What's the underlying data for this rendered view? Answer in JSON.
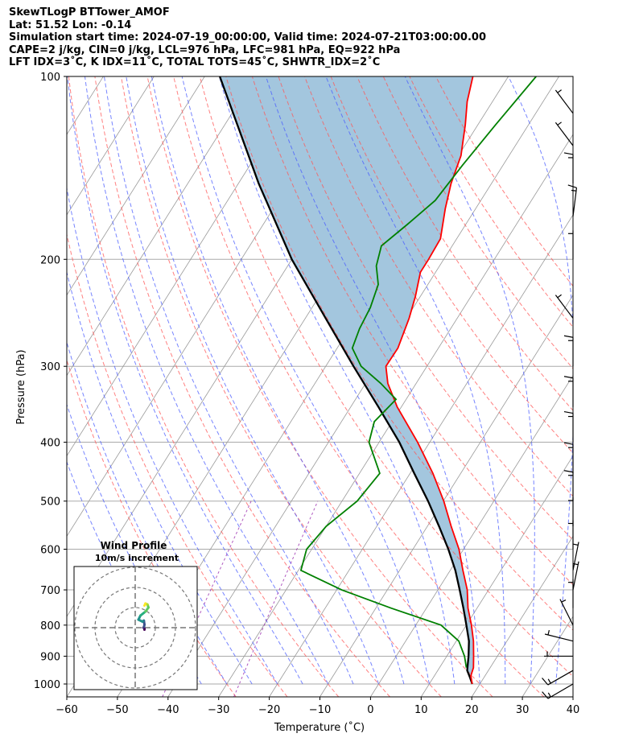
{
  "header": {
    "line1": "SkewTLogP BTTower_AMOF",
    "line2": "Lat: 51.52   Lon: -0.14",
    "line3": "Simulation start time: 2024-07-19_00:00:00, Valid time: 2024-07-21T03:00:00.00",
    "line4": "CAPE=2 j/kg, CIN=0 j/kg, LCL=976 hPa, LFC=981 hPa, EQ=922 hPa",
    "line5": "LFT IDX=3˚C, K IDX=11˚C, TOTAL TOTS=45˚C, SHWTR_IDX=2˚C"
  },
  "axes": {
    "xlabel": "Temperature (˚C)",
    "ylabel": "Pressure (hPa)"
  },
  "hodograph": {
    "title": "Wind Profile",
    "subtitle": "10m/s increment"
  },
  "colors": {
    "temperature": "#ff0000",
    "dewpoint": "#008000",
    "parcel": "#000000",
    "cape_fill": "#a3c6de",
    "dry_adiabats": "#ff5555",
    "moist_adiabats": "#4a5cff",
    "mixing_ratio": "#9b30b0",
    "isotherms": "#999999",
    "isobars": "#aaaaaa"
  },
  "chart_data": {
    "type": "skew-t",
    "xlim": [
      -60,
      40
    ],
    "ylim": [
      1050,
      100
    ],
    "yscale": "log",
    "xticks": [
      -60,
      -50,
      -40,
      -30,
      -20,
      -10,
      0,
      10,
      20,
      30,
      40
    ],
    "xtick_labels": [
      "−60",
      "−50",
      "−40",
      "−30",
      "−20",
      "−10",
      "0",
      "10",
      "20",
      "30",
      "40"
    ],
    "yticks": [
      1000,
      900,
      800,
      700,
      600,
      500,
      400,
      300,
      200,
      100
    ],
    "ytick_labels": [
      "1000",
      "900",
      "800",
      "700",
      "600",
      "500",
      "400",
      "300",
      "200",
      "100"
    ],
    "grid": true,
    "series": [
      {
        "key": "temperature",
        "pressure": [
          1000,
          970,
          940,
          900,
          850,
          800,
          750,
          700,
          650,
          600,
          550,
          500,
          450,
          400,
          350,
          320,
          300,
          280,
          250,
          230,
          210,
          200,
          185,
          165,
          150,
          135,
          120,
          110,
          100
        ],
        "values": [
          18.5,
          17.2,
          16.7,
          15.3,
          13.4,
          11.0,
          8.2,
          5.8,
          2.5,
          -0.9,
          -5.3,
          -9.9,
          -15.5,
          -22.4,
          -30.8,
          -35.6,
          -38.1,
          -38.0,
          -39.5,
          -41.0,
          -43.0,
          -43.0,
          -43.2,
          -46.0,
          -48.0,
          -49.5,
          -52.5,
          -55.0,
          -57.0
        ]
      },
      {
        "key": "dewpoint",
        "pressure": [
          940,
          900,
          850,
          800,
          750,
          700,
          650,
          600,
          550,
          500,
          450,
          400,
          370,
          340,
          320,
          300,
          280,
          260,
          240,
          220,
          205,
          190,
          175,
          160,
          140,
          120,
          100
        ],
        "values": [
          15.3,
          13.5,
          10.5,
          5.0,
          -7.0,
          -19.0,
          -29.5,
          -31.0,
          -30.0,
          -27.0,
          -26.0,
          -32.0,
          -33.5,
          -32.0,
          -37.0,
          -43.0,
          -47.0,
          -48.0,
          -48.5,
          -49.8,
          -52.5,
          -54.0,
          -51.5,
          -49.0,
          -48.0,
          -46.5,
          -44.5
        ]
      },
      {
        "key": "parcel",
        "pressure": [
          1000,
          975,
          950,
          900,
          850,
          800,
          750,
          700,
          650,
          600,
          550,
          500,
          450,
          400,
          350,
          300,
          250,
          200,
          150,
          100
        ],
        "values": [
          18.5,
          17.2,
          15.8,
          14.3,
          12.5,
          10.0,
          7.3,
          4.3,
          1.0,
          -3.0,
          -7.7,
          -13.0,
          -19.2,
          -26.0,
          -34.5,
          -44.5,
          -56.0,
          -70.0,
          -86.0,
          -107.0
        ]
      }
    ],
    "wind_barbs": [
      {
        "pressure": 1000,
        "u": 8.6,
        "v": 5.0
      },
      {
        "pressure": 950,
        "u": 7.0,
        "v": 4.0
      },
      {
        "pressure": 900,
        "u": 5.0,
        "v": 0.0
      },
      {
        "pressure": 850,
        "u": 4.0,
        "v": -1.0
      },
      {
        "pressure": 800,
        "u": 2.0,
        "v": -4.0
      },
      {
        "pressure": 750,
        "u": 0.0,
        "v": -5.0
      },
      {
        "pressure": 700,
        "u": -1.0,
        "v": -5.0
      },
      {
        "pressure": 650,
        "u": -1.0,
        "v": -5.0
      },
      {
        "pressure": 600,
        "u": 0.0,
        "v": -5.0
      },
      {
        "pressure": 550,
        "u": 0.0,
        "v": -5.0
      },
      {
        "pressure": 500,
        "u": 0.0,
        "v": -8.0
      },
      {
        "pressure": 450,
        "u": 0.0,
        "v": -10.0
      },
      {
        "pressure": 400,
        "u": 0.0,
        "v": -10.0
      },
      {
        "pressure": 350,
        "u": 0.0,
        "v": -10.0
      },
      {
        "pressure": 300,
        "u": 0.0,
        "v": -10.0
      },
      {
        "pressure": 250,
        "u": 3.0,
        "v": -4.0
      },
      {
        "pressure": 200,
        "u": 0.0,
        "v": -5.0
      },
      {
        "pressure": 170,
        "u": -1.0,
        "v": -8.0
      },
      {
        "pressure": 150,
        "u": 0.0,
        "v": -8.0
      },
      {
        "pressure": 130,
        "u": 3.0,
        "v": -4.0
      },
      {
        "pressure": 115,
        "u": 3.0,
        "v": -4.0
      }
    ],
    "hodograph": {
      "rings_ms": [
        10,
        20,
        30
      ],
      "u": [
        -1.0,
        -1.0,
        -1.5,
        -1.2,
        -1.0,
        -1.3,
        -2.0,
        -4.0,
        -3.0,
        -0.5,
        1.0,
        0.5,
        -0.5,
        -1.0
      ],
      "v": [
        -1.0,
        -0.5,
        0.0,
        0.5,
        1.5,
        3.5,
        3.0,
        4.0,
        6.0,
        8.0,
        10.0,
        11.5,
        12.0,
        11.0
      ]
    }
  }
}
